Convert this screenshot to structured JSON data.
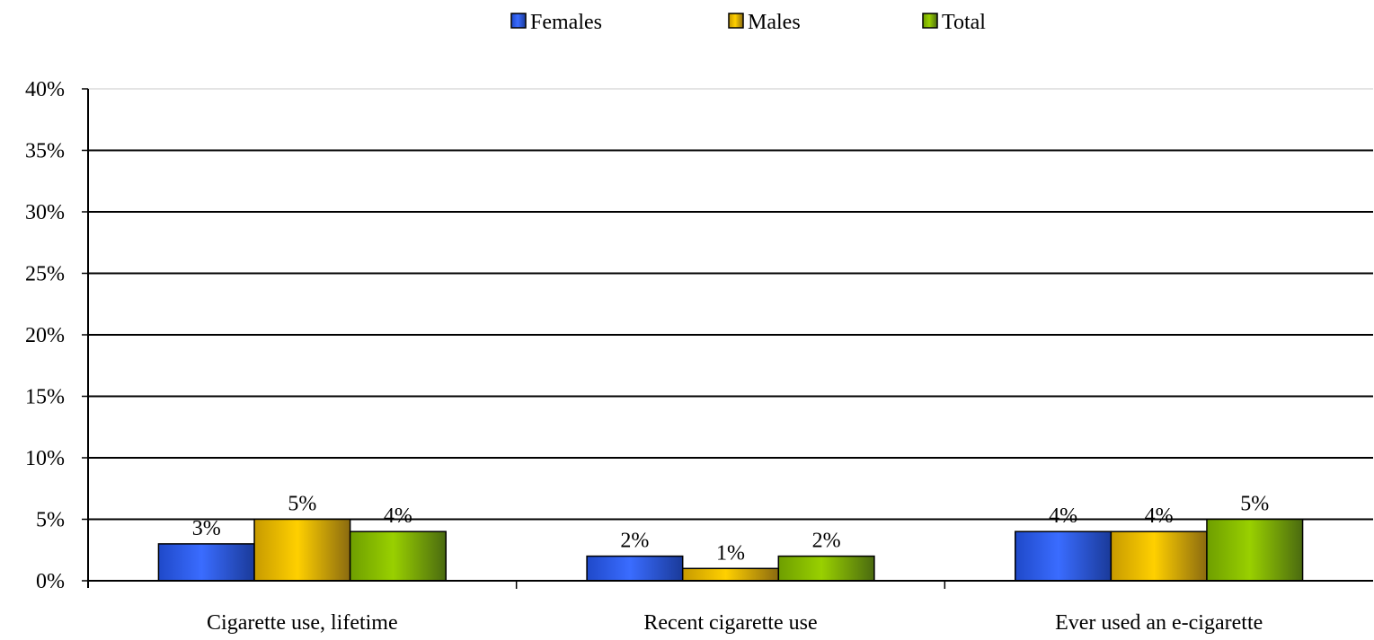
{
  "chart_data": {
    "type": "bar",
    "categories": [
      "Cigarette use, lifetime",
      "Recent cigarette use",
      "Ever used an e-cigarette"
    ],
    "series": [
      {
        "name": "Females",
        "values": [
          3,
          2,
          4
        ],
        "labels": [
          "3%",
          "2%",
          "4%"
        ],
        "color": "#2b5ef5"
      },
      {
        "name": "Males",
        "values": [
          5,
          1,
          4
        ],
        "labels": [
          "5%",
          "1%",
          "4%"
        ],
        "color": "#f5c400"
      },
      {
        "name": "Total",
        "values": [
          4,
          2,
          5
        ],
        "labels": [
          "4%",
          "2%",
          "5%"
        ],
        "color": "#8cc400"
      }
    ],
    "y_ticks": [
      "0%",
      "5%",
      "10%",
      "15%",
      "20%",
      "25%",
      "30%",
      "35%",
      "40%"
    ],
    "y_tick_values": [
      0,
      5,
      10,
      15,
      20,
      25,
      30,
      35,
      40
    ],
    "ylim": [
      0,
      40
    ],
    "grid": true,
    "legend_position": "top-center",
    "title": "",
    "xlabel": "",
    "ylabel": ""
  }
}
